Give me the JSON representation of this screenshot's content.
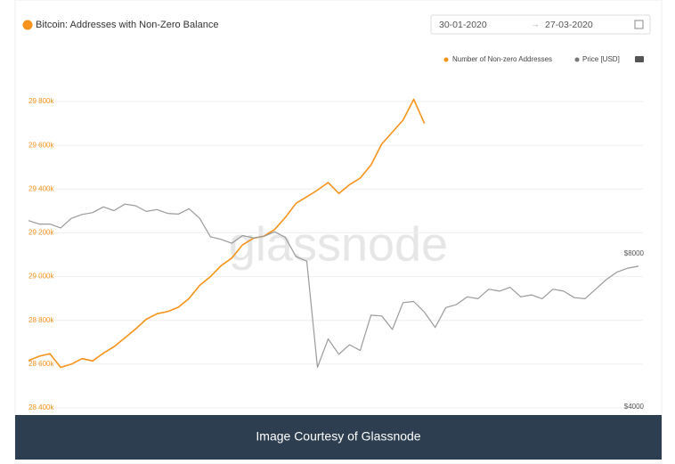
{
  "chart_data": {
    "type": "line",
    "title": "Bitcoin: Addresses with Non-Zero Balance",
    "date_from": "30-01-2020",
    "date_to": "27-03-2020",
    "watermark": "glassnode",
    "caption": "Image Courtesy of Glassnode",
    "series": [
      {
        "name": "Number of Non-zero Addresses",
        "color": "#f7931a",
        "values": [
          28616,
          28636,
          28648,
          28585,
          28600,
          28625,
          28615,
          28650,
          28680,
          28720,
          28760,
          28805,
          28830,
          28840,
          28860,
          28900,
          28960,
          29000,
          29050,
          29085,
          29145,
          29175,
          29185,
          29215,
          29270,
          29335,
          29365,
          29395,
          29430,
          29380,
          29420,
          29450,
          29510,
          29605,
          29660,
          29715,
          29810,
          29700,
          null,
          null,
          null,
          null,
          null,
          null,
          null,
          null,
          null,
          null,
          null,
          null,
          null,
          null,
          null,
          null,
          null,
          null,
          null,
          null
        ]
      },
      {
        "name": "Price [USD]",
        "color": "#9a9a9a",
        "axis": "y2",
        "values": [
          8890,
          8800,
          8800,
          8700,
          8950,
          9050,
          9100,
          9250,
          9150,
          9320,
          9280,
          9130,
          9180,
          9080,
          9060,
          9200,
          8950,
          8470,
          8400,
          8300,
          8500,
          8440,
          8480,
          8600,
          8450,
          7950,
          7830,
          5060,
          5800,
          5400,
          5650,
          5500,
          6420,
          6400,
          6050,
          6750,
          6780,
          6500,
          6100,
          6620,
          6700,
          6900,
          6850,
          7100,
          7050,
          7150,
          6900,
          6950,
          6850,
          7100,
          7050,
          6880,
          6850,
          7100,
          7350,
          7550,
          7650,
          7700
        ]
      }
    ],
    "ylim": [
      28400,
      29800
    ],
    "yticks": [
      {
        "value": 28400,
        "label": "28 400k"
      },
      {
        "value": 28600,
        "label": "28 600k"
      },
      {
        "value": 28800,
        "label": "28 800k"
      },
      {
        "value": 29000,
        "label": "29 000k"
      },
      {
        "value": 29200,
        "label": "29 200k"
      },
      {
        "value": 29400,
        "label": "29 400k"
      },
      {
        "value": 29600,
        "label": "29 600k"
      },
      {
        "value": 29800,
        "label": "29 800k"
      }
    ],
    "y2lim": [
      4000,
      12000
    ],
    "y2ticks": [
      {
        "value": 4000,
        "label": "$4000"
      },
      {
        "value": 8000,
        "label": "$8000"
      }
    ],
    "grid": true
  }
}
